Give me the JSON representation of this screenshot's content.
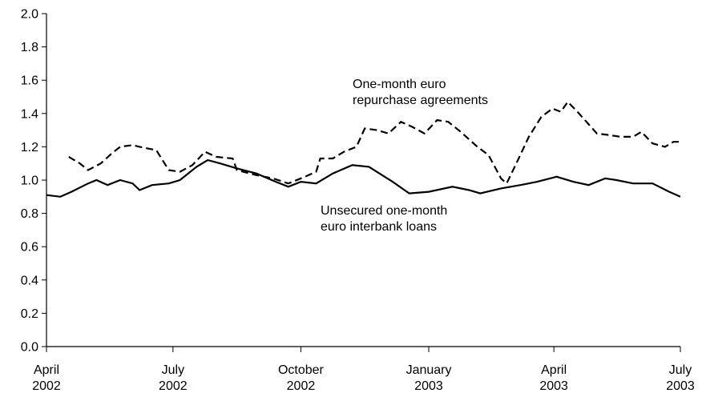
{
  "chart_data": {
    "type": "line",
    "xlim": [
      "2002-04-01",
      "2003-07-01"
    ],
    "xticks": [
      {
        "value": "2002-04-01",
        "label": "April\n2002"
      },
      {
        "value": "2002-07-01",
        "label": "July\n2002"
      },
      {
        "value": "2002-10-01",
        "label": "October\n2002"
      },
      {
        "value": "2003-01-01",
        "label": "January\n2003"
      },
      {
        "value": "2003-04-01",
        "label": "April\n2003"
      },
      {
        "value": "2003-07-01",
        "label": "July\n2003"
      }
    ],
    "ylim": [
      0,
      2
    ],
    "yticks": [
      {
        "value": 0,
        "label": "0.0"
      },
      0.2,
      0.4,
      0.6,
      0.8,
      {
        "value": 1,
        "label": "1.0"
      },
      1.2,
      1.4,
      1.6,
      1.8,
      {
        "value": 2,
        "label": "2.0"
      }
    ],
    "grid": false,
    "series": [
      {
        "name": "One-month euro\nrepurchase agreements",
        "color": "#000000",
        "dash": "dashed",
        "x": [
          "2002-04-17",
          "2002-04-25",
          "2002-05-01",
          "2002-05-10",
          "2002-05-18",
          "2002-05-24",
          "2002-06-02",
          "2002-06-07",
          "2002-06-19",
          "2002-06-28",
          "2002-07-06",
          "2002-07-15",
          "2002-07-24",
          "2002-08-01",
          "2002-08-13",
          "2002-08-16",
          "2002-08-30",
          "2002-09-11",
          "2002-09-22",
          "2002-10-04",
          "2002-10-12",
          "2002-10-15",
          "2002-10-24",
          "2002-11-01",
          "2002-11-10",
          "2002-11-16",
          "2002-11-25",
          "2002-12-03",
          "2002-12-12",
          "2002-12-20",
          "2002-12-29",
          "2003-01-07",
          "2003-01-15",
          "2003-01-24",
          "2003-02-05",
          "2003-02-13",
          "2003-02-22",
          "2003-02-26",
          "2003-03-05",
          "2003-03-14",
          "2003-03-23",
          "2003-03-31",
          "2003-04-06",
          "2003-04-11",
          "2003-04-18",
          "2003-05-02",
          "2003-05-11",
          "2003-05-19",
          "2003-05-28",
          "2003-06-03",
          "2003-06-11",
          "2003-06-20",
          "2003-06-26",
          "2003-07-01"
        ],
        "values": [
          1.14,
          1.1,
          1.06,
          1.1,
          1.16,
          1.2,
          1.21,
          1.2,
          1.18,
          1.06,
          1.05,
          1.09,
          1.17,
          1.14,
          1.13,
          1.06,
          1.03,
          1.01,
          0.98,
          1.02,
          1.05,
          1.13,
          1.13,
          1.17,
          1.2,
          1.31,
          1.3,
          1.28,
          1.35,
          1.32,
          1.28,
          1.36,
          1.35,
          1.29,
          1.2,
          1.15,
          1.01,
          0.98,
          1.1,
          1.26,
          1.38,
          1.43,
          1.41,
          1.47,
          1.41,
          1.28,
          1.27,
          1.26,
          1.26,
          1.29,
          1.22,
          1.2,
          1.23,
          1.23
        ]
      },
      {
        "name": "Unsecured one-month\neuro interbank loans",
        "color": "#000000",
        "dash": "solid",
        "x": [
          "2002-04-01",
          "2002-04-11",
          "2002-04-19",
          "2002-05-01",
          "2002-05-07",
          "2002-05-15",
          "2002-05-24",
          "2002-06-02",
          "2002-06-07",
          "2002-06-16",
          "2002-06-28",
          "2002-07-06",
          "2002-07-18",
          "2002-07-26",
          "2002-08-04",
          "2002-08-16",
          "2002-08-30",
          "2002-09-13",
          "2002-09-22",
          "2002-10-01",
          "2002-10-12",
          "2002-10-24",
          "2002-11-07",
          "2002-11-19",
          "2002-12-06",
          "2002-12-18",
          "2003-01-01",
          "2003-01-18",
          "2003-01-30",
          "2003-02-07",
          "2003-02-22",
          "2003-03-08",
          "2003-03-20",
          "2003-04-03",
          "2003-04-15",
          "2003-04-26",
          "2003-05-08",
          "2003-05-16",
          "2003-05-28",
          "2003-06-11",
          "2003-06-23",
          "2003-07-01"
        ],
        "values": [
          0.91,
          0.9,
          0.93,
          0.98,
          1.0,
          0.97,
          1.0,
          0.98,
          0.94,
          0.97,
          0.98,
          1.0,
          1.08,
          1.12,
          1.1,
          1.07,
          1.04,
          0.99,
          0.96,
          0.99,
          0.98,
          1.04,
          1.09,
          1.08,
          0.99,
          0.92,
          0.93,
          0.96,
          0.94,
          0.92,
          0.95,
          0.97,
          0.99,
          1.02,
          0.99,
          0.97,
          1.01,
          1.0,
          0.98,
          0.98,
          0.93,
          0.9
        ]
      }
    ]
  }
}
